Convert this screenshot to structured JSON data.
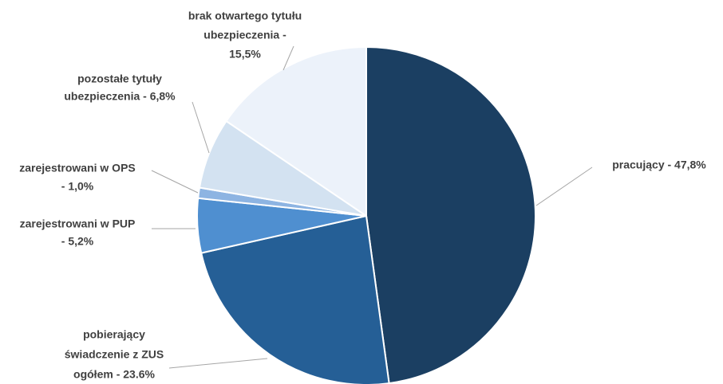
{
  "chart_data": {
    "type": "pie",
    "categories": [
      [
        "pracujący  - 47,8%"
      ],
      [
        "pobierający",
        "świadczenie z ZUS",
        "ogółem - 23.6%"
      ],
      [
        "zarejestrowani w PUP",
        "- 5,2%"
      ],
      [
        "zarejestrowani w OPS",
        "- 1,0%"
      ],
      [
        "pozostałe tytuły",
        "ubezpieczenia - 6,8%"
      ],
      [
        "brak otwartego tytułu",
        "ubezpieczenia -",
        "15,5%"
      ]
    ],
    "values": [
      47.8,
      23.6,
      5.2,
      1.0,
      6.8,
      15.5
    ],
    "colors": [
      "#1b3f62",
      "#255f96",
      "#4f8fd0",
      "#8db4e2",
      "#d3e2f1",
      "#ecf2fa"
    ]
  }
}
